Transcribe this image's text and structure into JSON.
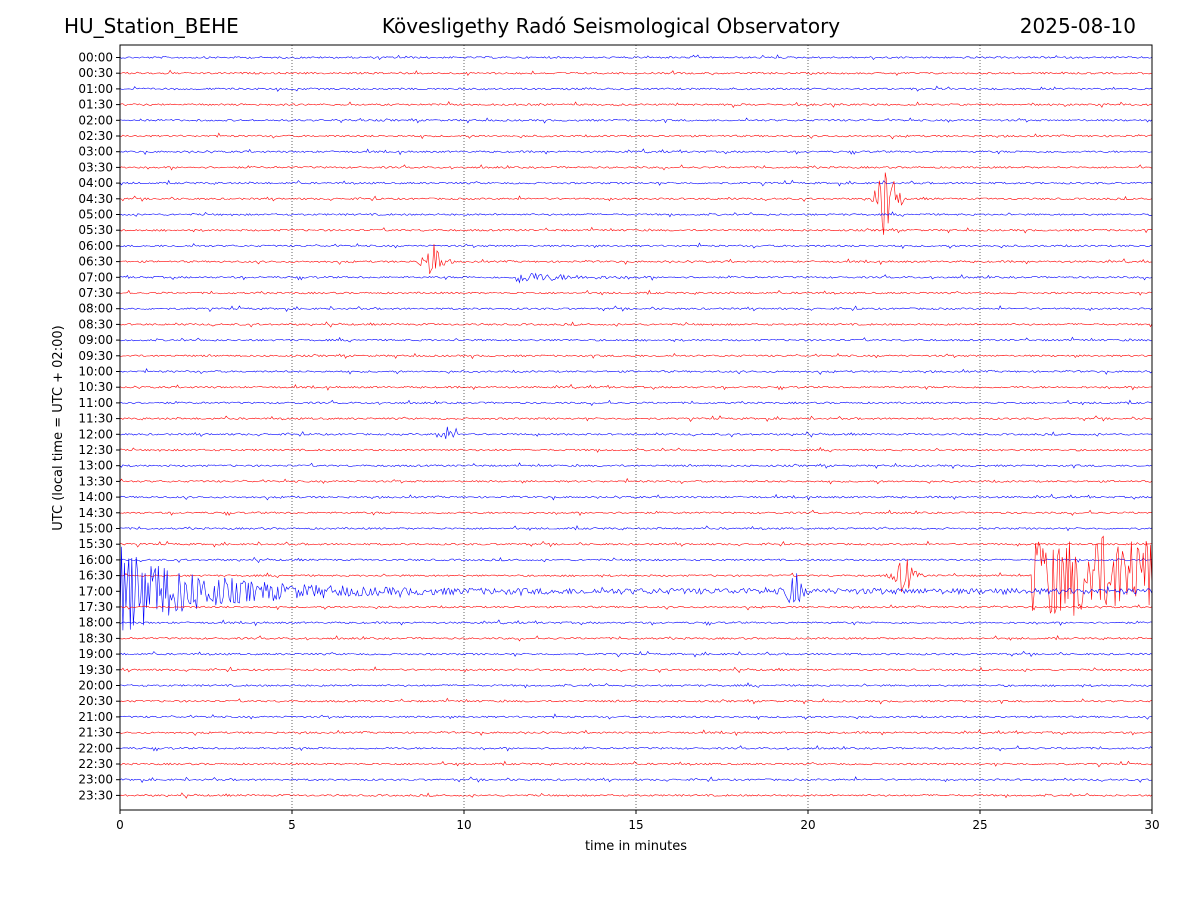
{
  "header": {
    "station": "HU_Station_BEHE",
    "title": "Kövesligethy Radó Seismological Observatory",
    "date": "2025-08-10"
  },
  "chart_data": {
    "type": "line",
    "xlabel": "time in minutes",
    "ylabel": "UTC (local time = UTC + 02:00)",
    "xlim": [
      0,
      30
    ],
    "x_ticks": [
      0,
      5,
      10,
      15,
      20,
      25,
      30
    ],
    "grid": "vertical dotted lines at each x tick",
    "row_labels": [
      "00:00",
      "00:30",
      "01:00",
      "01:30",
      "02:00",
      "02:30",
      "03:00",
      "03:30",
      "04:00",
      "04:30",
      "05:00",
      "05:30",
      "06:00",
      "06:30",
      "07:00",
      "07:30",
      "08:00",
      "08:30",
      "09:00",
      "09:30",
      "10:00",
      "10:30",
      "11:00",
      "11:30",
      "12:00",
      "12:30",
      "13:00",
      "13:30",
      "14:00",
      "14:30",
      "15:00",
      "15:30",
      "16:00",
      "16:30",
      "17:00",
      "17:30",
      "18:00",
      "18:30",
      "19:00",
      "19:30",
      "20:00",
      "20:30",
      "21:00",
      "21:30",
      "22:00",
      "22:30",
      "23:00",
      "23:30"
    ],
    "trace_colors": [
      "#0000ff",
      "#ff0000"
    ],
    "events": [
      {
        "row": "04:30",
        "minute": 22.3,
        "amplitude": "large",
        "color": "#ff0000"
      },
      {
        "row": "06:30",
        "minute": 9.1,
        "amplitude": "medium",
        "color": "#ff0000"
      },
      {
        "row": "07:00",
        "minute": 11.5,
        "amplitude": "small, long coda to ~15",
        "color": "#0000ff"
      },
      {
        "row": "12:00",
        "minute": 9.5,
        "amplitude": "small",
        "color": "#0000ff"
      },
      {
        "row": "16:30",
        "minute": 22.8,
        "amplitude": "medium",
        "color": "#ff0000"
      },
      {
        "row": "16:30",
        "minute": 26.5,
        "amplitude": "very large, sustained to 30",
        "color": "#ff0000"
      },
      {
        "row": "17:00",
        "minute": 0.0,
        "amplitude": "very large, decaying to ~9",
        "color": "#0000ff"
      },
      {
        "row": "17:00",
        "minute": 19.6,
        "amplitude": "medium",
        "color": "#0000ff"
      }
    ]
  }
}
